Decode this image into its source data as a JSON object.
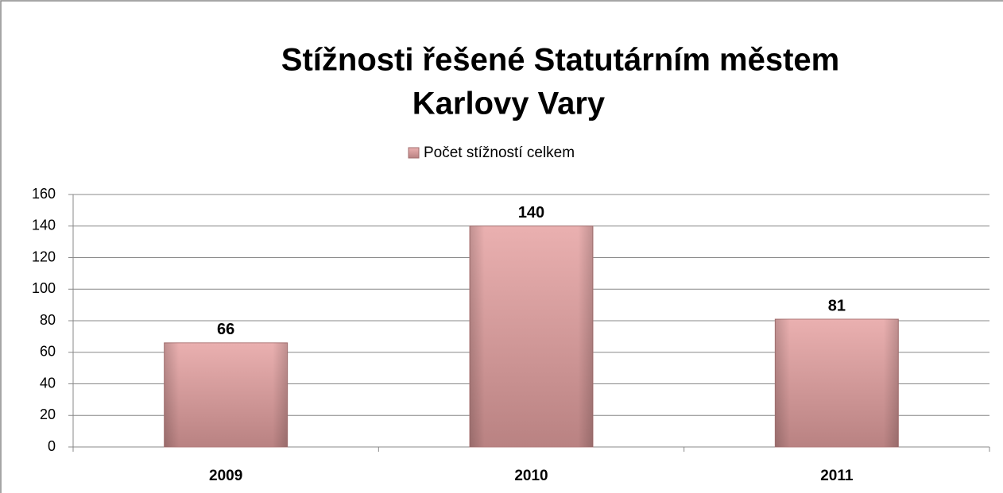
{
  "chart_data": {
    "type": "bar",
    "title": [
      "Stížnosti řešené Statutárním městem",
      "Karlovy Vary"
    ],
    "categories": [
      "2009",
      "2010",
      "2011"
    ],
    "series": [
      {
        "name": "Počet stížností celkem",
        "color": "#e4a4a4",
        "values": [
          66,
          140,
          81
        ]
      }
    ],
    "ylim": [
      0,
      160
    ],
    "yticks": [
      0,
      20,
      40,
      60,
      80,
      100,
      120,
      140,
      160
    ],
    "grid": true,
    "legend": "top"
  }
}
